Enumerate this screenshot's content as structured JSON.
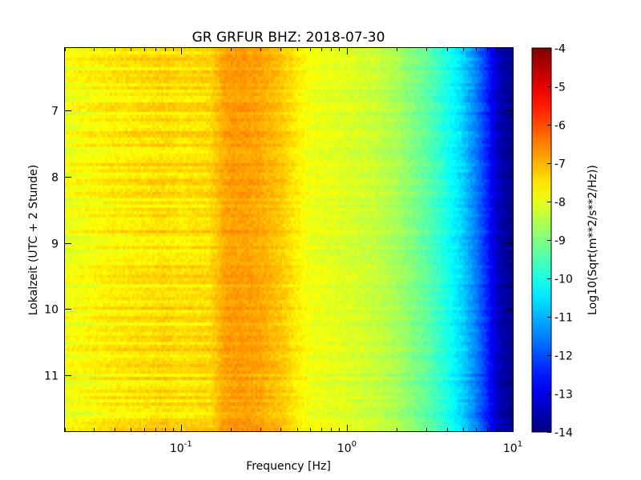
{
  "chart_data": {
    "type": "heatmap",
    "title": "GR GRFUR BHZ: 2018-07-30",
    "xlabel": "Frequency [Hz]",
    "ylabel": "Lokalzeit (UTC + 2 Stunde)",
    "colorbar_label": "Log10(Sqrt(m**2/s**2/Hz))",
    "x_scale": "log",
    "xlim": [
      0.02,
      10
    ],
    "ylim": [
      11.85,
      6.05
    ],
    "x_ticks": [
      {
        "base": "10",
        "exp": "-1",
        "value": 0.1
      },
      {
        "base": "10",
        "exp": "0",
        "value": 1
      },
      {
        "base": "10",
        "exp": "1",
        "value": 10
      }
    ],
    "y_ticks": [
      7,
      8,
      9,
      10,
      11
    ],
    "color_range": [
      -14,
      -4
    ],
    "colorbar_ticks": [
      "-4",
      "-5",
      "-6",
      "-7",
      "-8",
      "-9",
      "-10",
      "-11",
      "-12",
      "-13",
      "-14"
    ],
    "colormap": "jet",
    "spectrum_profile": {
      "frequency_hz": [
        0.02,
        0.04,
        0.06,
        0.08,
        0.1,
        0.15,
        0.18,
        0.2,
        0.25,
        0.3,
        0.4,
        0.5,
        0.6,
        0.8,
        1.0,
        1.5,
        2.0,
        3.0,
        4.0,
        5.0,
        6.0,
        7.0,
        8.0,
        9.0,
        10.0
      ],
      "log10_amplitude": [
        -7.9,
        -7.6,
        -7.5,
        -7.4,
        -7.5,
        -7.4,
        -6.9,
        -6.8,
        -6.8,
        -6.9,
        -7.2,
        -7.6,
        -7.9,
        -8.0,
        -8.1,
        -8.3,
        -8.6,
        -9.3,
        -10.0,
        -10.7,
        -11.5,
        -12.4,
        -13.3,
        -13.7,
        -13.8
      ]
    },
    "grid": false
  }
}
